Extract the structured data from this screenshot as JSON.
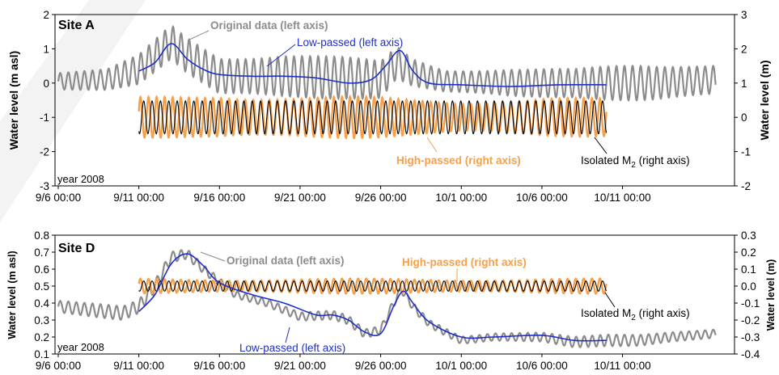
{
  "colors": {
    "original": "#8c8c8c",
    "low_passed": "#1f2fc8",
    "high_passed": "#f5a04a",
    "isolated_m2": "#000000"
  },
  "chart_data": [
    {
      "type": "line",
      "panel": "Site A",
      "note": "year 2008",
      "ylabel": "Water level (m asl)",
      "y2label": "Water level (m)",
      "ylim": [
        -3,
        2
      ],
      "y2lim": [
        -2,
        3
      ],
      "yticks": [
        "-3",
        "-2",
        "-1",
        "0",
        "1",
        "2"
      ],
      "y2ticks": [
        "-2",
        "-1",
        "0",
        "1",
        "2",
        "3"
      ],
      "xlim_days_from_9_6": [
        0,
        41
      ],
      "xticks": [
        "9/6 00:00",
        "9/11 00:00",
        "9/16 00:00",
        "9/21 00:00",
        "9/26 00:00",
        "10/1 00:00",
        "10/6 00:00",
        "10/11 00:00"
      ],
      "annotations": {
        "original": "Original data (left axis)",
        "low": "Low-passed (left axis)",
        "high": "High-passed (right axis)",
        "m2_prefix": "Isolated M",
        "m2_sub": "2",
        "m2_suffix": " (right axis)"
      },
      "series": [
        {
          "name": "Original data (left axis)",
          "axis": "left",
          "start_day": 0,
          "end_day": 40.8,
          "mean_profile": [
            [
              0,
              0.05
            ],
            [
              3,
              0.1
            ],
            [
              5,
              0.4
            ],
            [
              7,
              1.2
            ],
            [
              8,
              0.8
            ],
            [
              10,
              0.2
            ],
            [
              14,
              0.2
            ],
            [
              18,
              0.15
            ],
            [
              20,
              0.1
            ],
            [
              21,
              0.6
            ],
            [
              22,
              0.3
            ],
            [
              24,
              0.05
            ],
            [
              29,
              0.0
            ],
            [
              34,
              0.0
            ],
            [
              37,
              0.0
            ],
            [
              40.8,
              0.1
            ]
          ],
          "amplitude_profile": [
            [
              0,
              0.28
            ],
            [
              3,
              0.3
            ],
            [
              6,
              0.5
            ],
            [
              8,
              0.62
            ],
            [
              10,
              0.7
            ],
            [
              14,
              0.72
            ],
            [
              18,
              0.6
            ],
            [
              20,
              0.55
            ],
            [
              22,
              0.45
            ],
            [
              24,
              0.4
            ],
            [
              28,
              0.5
            ],
            [
              32,
              0.42
            ],
            [
              36,
              0.55
            ],
            [
              40.8,
              0.58
            ]
          ]
        },
        {
          "name": "Low-passed (left axis)",
          "axis": "left",
          "x": [
            5,
            6,
            7,
            8,
            9,
            10,
            12,
            14,
            16,
            18,
            19.4,
            20.3,
            21.2,
            22,
            23,
            25,
            28,
            31,
            34
          ],
          "y": [
            0.35,
            0.6,
            1.15,
            0.7,
            0.4,
            0.25,
            0.2,
            0.2,
            0.15,
            0.0,
            0.1,
            0.5,
            0.95,
            0.35,
            0.0,
            -0.05,
            -0.1,
            -0.05,
            -0.05
          ]
        },
        {
          "name": "High-passed (right axis)",
          "axis": "right",
          "start_day": 5,
          "end_day": 34,
          "amplitude_profile": [
            [
              5,
              0.6
            ],
            [
              10,
              0.78
            ],
            [
              15,
              0.62
            ],
            [
              20,
              0.6
            ],
            [
              25,
              0.55
            ],
            [
              30,
              0.6
            ],
            [
              34,
              0.55
            ]
          ]
        },
        {
          "name": "Isolated M2 (right axis)",
          "axis": "right",
          "start_day": 5,
          "end_day": 34,
          "amplitude": 0.48
        }
      ]
    },
    {
      "type": "line",
      "panel": "Site D",
      "note": "year 2008",
      "ylabel": "Water level (m asl)",
      "y2label": "Water level (m)",
      "ylim": [
        0.1,
        0.8
      ],
      "y2lim": [
        -0.4,
        0.3
      ],
      "yticks": [
        "0.1",
        "0.2",
        "0.3",
        "0.4",
        "0.5",
        "0.6",
        "0.7",
        "0.8"
      ],
      "y2ticks": [
        "-0.4",
        "-0.3",
        "-0.2",
        "-0.1",
        "0.0",
        "0.1",
        "0.2",
        "0.3"
      ],
      "xlim_days_from_9_6": [
        0,
        41
      ],
      "xticks": [
        "9/6 00:00",
        "9/11 00:00",
        "9/16 00:00",
        "9/21 00:00",
        "9/26 00:00",
        "10/1 00:00",
        "10/6 00:00",
        "10/11 00:00"
      ],
      "annotations": {
        "original": "Original data (left axis)",
        "low": "Low-passed (left axis)",
        "high": "High-passed (right axis)",
        "m2_prefix": "Isolated M",
        "m2_sub": "2",
        "m2_suffix": " (right axis)"
      },
      "series": [
        {
          "name": "Original data (left axis)",
          "axis": "left",
          "start_day": 0,
          "end_day": 40.8,
          "mean_profile": [
            [
              0,
              0.38
            ],
            [
              2,
              0.36
            ],
            [
              4,
              0.34
            ],
            [
              5,
              0.38
            ],
            [
              6,
              0.5
            ],
            [
              7,
              0.67
            ],
            [
              8,
              0.69
            ],
            [
              9,
              0.6
            ],
            [
              11,
              0.45
            ],
            [
              13,
              0.4
            ],
            [
              15,
              0.32
            ],
            [
              17,
              0.33
            ],
            [
              18,
              0.3
            ],
            [
              19,
              0.22
            ],
            [
              20,
              0.24
            ],
            [
              20.8,
              0.4
            ],
            [
              21.3,
              0.48
            ],
            [
              22,
              0.38
            ],
            [
              23,
              0.28
            ],
            [
              25,
              0.18
            ],
            [
              27,
              0.2
            ],
            [
              30,
              0.2
            ],
            [
              32,
              0.17
            ],
            [
              34,
              0.18
            ],
            [
              36,
              0.18
            ],
            [
              38,
              0.2
            ],
            [
              40.8,
              0.22
            ]
          ],
          "amplitude_profile": [
            [
              0,
              0.04
            ],
            [
              5,
              0.04
            ],
            [
              8,
              0.035
            ],
            [
              12,
              0.03
            ],
            [
              20,
              0.025
            ],
            [
              25,
              0.03
            ],
            [
              30,
              0.03
            ],
            [
              35,
              0.035
            ],
            [
              40.8,
              0.035
            ]
          ]
        },
        {
          "name": "Low-passed (left axis)",
          "axis": "left",
          "x": [
            5,
            6,
            7,
            8,
            9,
            10,
            12,
            14,
            16,
            17,
            18,
            19,
            20,
            20.8,
            21.4,
            22,
            23,
            25,
            27,
            30,
            32,
            34
          ],
          "y": [
            0.35,
            0.45,
            0.63,
            0.69,
            0.62,
            0.52,
            0.45,
            0.4,
            0.33,
            0.33,
            0.3,
            0.23,
            0.22,
            0.38,
            0.47,
            0.4,
            0.29,
            0.2,
            0.2,
            0.21,
            0.18,
            0.18
          ]
        },
        {
          "name": "High-passed (right axis)",
          "axis": "right",
          "start_day": 5,
          "end_day": 34,
          "amplitude": 0.045
        },
        {
          "name": "Isolated M2 (right axis)",
          "axis": "right",
          "start_day": 5,
          "end_day": 34,
          "amplitude": 0.03
        }
      ]
    }
  ]
}
